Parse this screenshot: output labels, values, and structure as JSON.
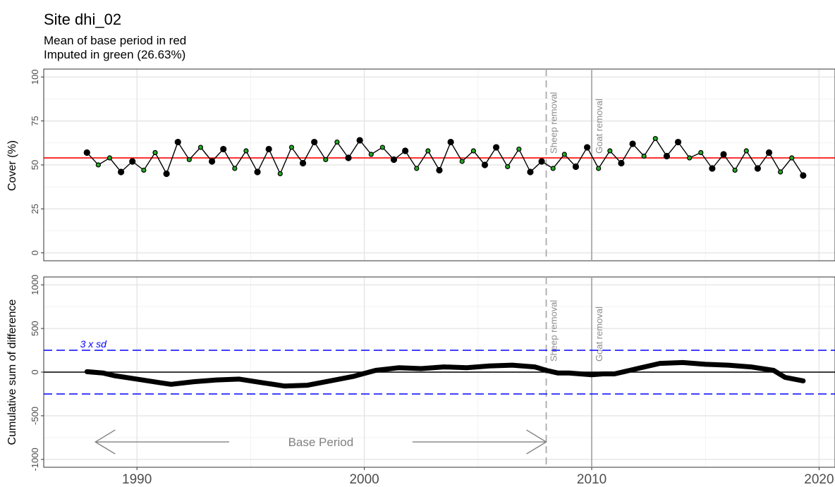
{
  "title": "Site dhi_02",
  "subtitle_line1": "Mean of base period in red",
  "subtitle_line2": "Imputed in green (26.63%)",
  "colors": {
    "mean_line": "#ff0000",
    "imputed_point": "#22aa22",
    "observed_point": "#000000",
    "threshold": "#0000ff",
    "event_line": "#aaaaaa",
    "arrow": "#808080"
  },
  "chart_data": [
    {
      "type": "scatter",
      "ylabel": "Cover (%)",
      "xlabel": "",
      "ylim": [
        0,
        100
      ],
      "xlim": [
        1985.9,
        2020.7
      ],
      "grid": true,
      "x_ticks": [
        1990,
        2000,
        2010,
        2020
      ],
      "y_ticks": [
        0,
        25,
        50,
        75,
        100
      ],
      "mean_base_period": 54,
      "events": [
        {
          "label": "Sheep removal",
          "x": 2008.0
        },
        {
          "label": "Goat removal",
          "x": 2010.0
        }
      ],
      "series": [
        {
          "x": [
            1987.8,
            1988.3,
            1988.8,
            1989.3,
            1989.8,
            1990.3,
            1990.8,
            1991.3,
            1991.8,
            1992.3,
            1992.8,
            1993.3,
            1993.8,
            1994.3,
            1994.8,
            1995.3,
            1995.8,
            1996.3,
            1996.8,
            1997.3,
            1997.8,
            1998.3,
            1998.8,
            1999.3,
            1999.8,
            2000.3,
            2000.8,
            2001.3,
            2001.8,
            2002.3,
            2002.8,
            2003.3,
            2003.8,
            2004.3,
            2004.8,
            2005.3,
            2005.8,
            2006.3,
            2006.8,
            2007.3,
            2007.8,
            2008.3,
            2008.8,
            2009.3,
            2009.8,
            2010.3,
            2010.8,
            2011.3,
            2011.8,
            2012.3,
            2012.8,
            2013.3,
            2013.8,
            2014.3,
            2014.8,
            2015.3,
            2015.8,
            2016.3,
            2016.8,
            2017.3,
            2017.8,
            2018.3,
            2018.8,
            2019.3
          ],
          "y": [
            57,
            50,
            54,
            46,
            52,
            47,
            57,
            45,
            63,
            53,
            60,
            52,
            59,
            48,
            58,
            46,
            59,
            45,
            60,
            51,
            63,
            53,
            63,
            54,
            64,
            56,
            60,
            53,
            58,
            48,
            58,
            47,
            63,
            52,
            58,
            50,
            60,
            49,
            59,
            46,
            52,
            48,
            56,
            49,
            60,
            48,
            58,
            51,
            62,
            55,
            65,
            55,
            63,
            54,
            57,
            48,
            56,
            47,
            58,
            48,
            57,
            46,
            54,
            44
          ]
        }
      ]
    },
    {
      "type": "line",
      "ylabel": "Cumulative sum of difference",
      "xlabel": "",
      "ylim": [
        -1000,
        1000
      ],
      "xlim": [
        1985.9,
        2020.7
      ],
      "grid": true,
      "x_ticks": [
        1990,
        2000,
        2010,
        2020
      ],
      "y_ticks": [
        -1000,
        -500,
        0,
        500,
        1000
      ],
      "threshold": 250,
      "threshold_label": "3 x sd",
      "events": [
        {
          "label": "Sheep removal",
          "x": 2008.0
        },
        {
          "label": "Goat removal",
          "x": 2010.0
        }
      ],
      "base_period": {
        "label": "Base Period",
        "from": 1987.8,
        "to": 2008.0
      },
      "series": [
        {
          "x": [
            1987.8,
            1988.5,
            1989.0,
            1990.0,
            1991.0,
            1991.5,
            1992.5,
            1993.5,
            1994.5,
            1995.5,
            1996.5,
            1997.5,
            1998.5,
            1999.5,
            2000.5,
            2001.5,
            2002.5,
            2003.5,
            2004.5,
            2005.5,
            2006.5,
            2007.5,
            2008.0,
            2008.5,
            2009.0,
            2009.5,
            2010.0,
            2010.5,
            2011.0,
            2011.5,
            2012.0,
            2013.0,
            2014.0,
            2015.0,
            2016.0,
            2017.0,
            2018.0,
            2018.5,
            2019.3
          ],
          "y": [
            5,
            -10,
            -40,
            -80,
            -120,
            -140,
            -110,
            -90,
            -80,
            -120,
            -160,
            -150,
            -100,
            -50,
            20,
            50,
            40,
            60,
            50,
            70,
            80,
            60,
            20,
            -10,
            -10,
            -20,
            -30,
            -20,
            -20,
            10,
            40,
            100,
            110,
            90,
            80,
            60,
            20,
            -60,
            -100
          ]
        }
      ]
    }
  ]
}
